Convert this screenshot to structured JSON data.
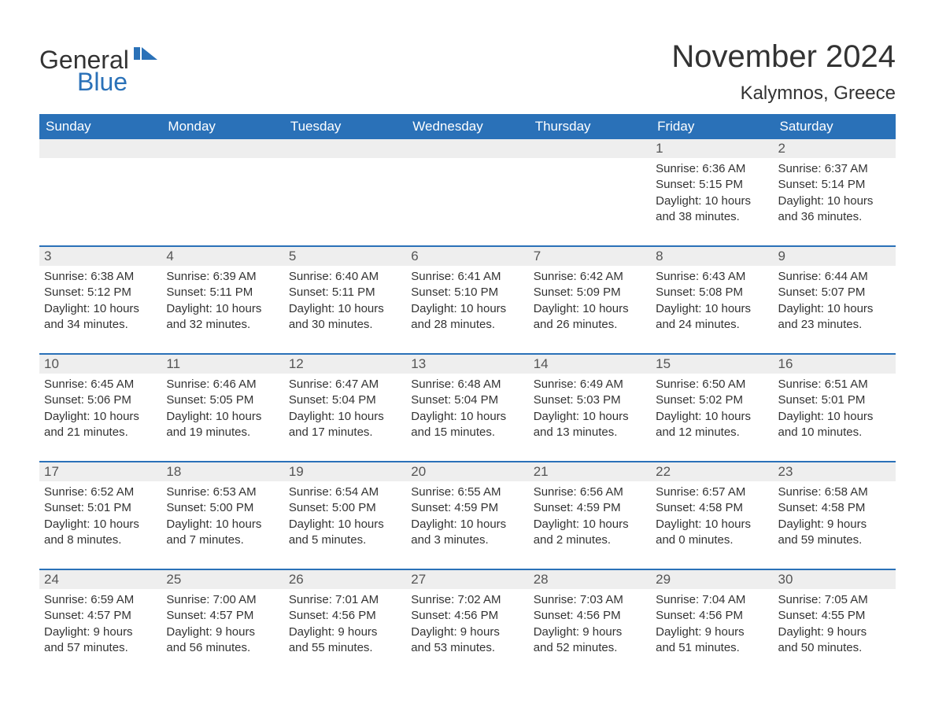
{
  "logo": {
    "text_general": "General",
    "text_blue": "Blue",
    "brand_color": "#2a71b8"
  },
  "title": "November 2024",
  "location": "Kalymnos, Greece",
  "colors": {
    "header_bg": "#2a71b8",
    "header_text": "#ffffff",
    "daynum_bg": "#eeeeee",
    "text": "#333333",
    "body_bg": "#ffffff",
    "row_border": "#2a71b8"
  },
  "typography": {
    "title_fontsize": 40,
    "location_fontsize": 24,
    "dayheader_fontsize": 17,
    "daynum_fontsize": 17,
    "body_fontsize": 15,
    "font_family": "Arial"
  },
  "layout": {
    "columns": 7,
    "rows": 5,
    "start_day_index": 5,
    "cell_min_height": 115
  },
  "day_headers": [
    "Sunday",
    "Monday",
    "Tuesday",
    "Wednesday",
    "Thursday",
    "Friday",
    "Saturday"
  ],
  "weeks": [
    [
      {
        "empty": true
      },
      {
        "empty": true
      },
      {
        "empty": true
      },
      {
        "empty": true
      },
      {
        "empty": true
      },
      {
        "day": "1",
        "sunrise": "Sunrise: 6:36 AM",
        "sunset": "Sunset: 5:15 PM",
        "daylight1": "Daylight: 10 hours",
        "daylight2": "and 38 minutes."
      },
      {
        "day": "2",
        "sunrise": "Sunrise: 6:37 AM",
        "sunset": "Sunset: 5:14 PM",
        "daylight1": "Daylight: 10 hours",
        "daylight2": "and 36 minutes."
      }
    ],
    [
      {
        "day": "3",
        "sunrise": "Sunrise: 6:38 AM",
        "sunset": "Sunset: 5:12 PM",
        "daylight1": "Daylight: 10 hours",
        "daylight2": "and 34 minutes."
      },
      {
        "day": "4",
        "sunrise": "Sunrise: 6:39 AM",
        "sunset": "Sunset: 5:11 PM",
        "daylight1": "Daylight: 10 hours",
        "daylight2": "and 32 minutes."
      },
      {
        "day": "5",
        "sunrise": "Sunrise: 6:40 AM",
        "sunset": "Sunset: 5:11 PM",
        "daylight1": "Daylight: 10 hours",
        "daylight2": "and 30 minutes."
      },
      {
        "day": "6",
        "sunrise": "Sunrise: 6:41 AM",
        "sunset": "Sunset: 5:10 PM",
        "daylight1": "Daylight: 10 hours",
        "daylight2": "and 28 minutes."
      },
      {
        "day": "7",
        "sunrise": "Sunrise: 6:42 AM",
        "sunset": "Sunset: 5:09 PM",
        "daylight1": "Daylight: 10 hours",
        "daylight2": "and 26 minutes."
      },
      {
        "day": "8",
        "sunrise": "Sunrise: 6:43 AM",
        "sunset": "Sunset: 5:08 PM",
        "daylight1": "Daylight: 10 hours",
        "daylight2": "and 24 minutes."
      },
      {
        "day": "9",
        "sunrise": "Sunrise: 6:44 AM",
        "sunset": "Sunset: 5:07 PM",
        "daylight1": "Daylight: 10 hours",
        "daylight2": "and 23 minutes."
      }
    ],
    [
      {
        "day": "10",
        "sunrise": "Sunrise: 6:45 AM",
        "sunset": "Sunset: 5:06 PM",
        "daylight1": "Daylight: 10 hours",
        "daylight2": "and 21 minutes."
      },
      {
        "day": "11",
        "sunrise": "Sunrise: 6:46 AM",
        "sunset": "Sunset: 5:05 PM",
        "daylight1": "Daylight: 10 hours",
        "daylight2": "and 19 minutes."
      },
      {
        "day": "12",
        "sunrise": "Sunrise: 6:47 AM",
        "sunset": "Sunset: 5:04 PM",
        "daylight1": "Daylight: 10 hours",
        "daylight2": "and 17 minutes."
      },
      {
        "day": "13",
        "sunrise": "Sunrise: 6:48 AM",
        "sunset": "Sunset: 5:04 PM",
        "daylight1": "Daylight: 10 hours",
        "daylight2": "and 15 minutes."
      },
      {
        "day": "14",
        "sunrise": "Sunrise: 6:49 AM",
        "sunset": "Sunset: 5:03 PM",
        "daylight1": "Daylight: 10 hours",
        "daylight2": "and 13 minutes."
      },
      {
        "day": "15",
        "sunrise": "Sunrise: 6:50 AM",
        "sunset": "Sunset: 5:02 PM",
        "daylight1": "Daylight: 10 hours",
        "daylight2": "and 12 minutes."
      },
      {
        "day": "16",
        "sunrise": "Sunrise: 6:51 AM",
        "sunset": "Sunset: 5:01 PM",
        "daylight1": "Daylight: 10 hours",
        "daylight2": "and 10 minutes."
      }
    ],
    [
      {
        "day": "17",
        "sunrise": "Sunrise: 6:52 AM",
        "sunset": "Sunset: 5:01 PM",
        "daylight1": "Daylight: 10 hours",
        "daylight2": "and 8 minutes."
      },
      {
        "day": "18",
        "sunrise": "Sunrise: 6:53 AM",
        "sunset": "Sunset: 5:00 PM",
        "daylight1": "Daylight: 10 hours",
        "daylight2": "and 7 minutes."
      },
      {
        "day": "19",
        "sunrise": "Sunrise: 6:54 AM",
        "sunset": "Sunset: 5:00 PM",
        "daylight1": "Daylight: 10 hours",
        "daylight2": "and 5 minutes."
      },
      {
        "day": "20",
        "sunrise": "Sunrise: 6:55 AM",
        "sunset": "Sunset: 4:59 PM",
        "daylight1": "Daylight: 10 hours",
        "daylight2": "and 3 minutes."
      },
      {
        "day": "21",
        "sunrise": "Sunrise: 6:56 AM",
        "sunset": "Sunset: 4:59 PM",
        "daylight1": "Daylight: 10 hours",
        "daylight2": "and 2 minutes."
      },
      {
        "day": "22",
        "sunrise": "Sunrise: 6:57 AM",
        "sunset": "Sunset: 4:58 PM",
        "daylight1": "Daylight: 10 hours",
        "daylight2": "and 0 minutes."
      },
      {
        "day": "23",
        "sunrise": "Sunrise: 6:58 AM",
        "sunset": "Sunset: 4:58 PM",
        "daylight1": "Daylight: 9 hours",
        "daylight2": "and 59 minutes."
      }
    ],
    [
      {
        "day": "24",
        "sunrise": "Sunrise: 6:59 AM",
        "sunset": "Sunset: 4:57 PM",
        "daylight1": "Daylight: 9 hours",
        "daylight2": "and 57 minutes."
      },
      {
        "day": "25",
        "sunrise": "Sunrise: 7:00 AM",
        "sunset": "Sunset: 4:57 PM",
        "daylight1": "Daylight: 9 hours",
        "daylight2": "and 56 minutes."
      },
      {
        "day": "26",
        "sunrise": "Sunrise: 7:01 AM",
        "sunset": "Sunset: 4:56 PM",
        "daylight1": "Daylight: 9 hours",
        "daylight2": "and 55 minutes."
      },
      {
        "day": "27",
        "sunrise": "Sunrise: 7:02 AM",
        "sunset": "Sunset: 4:56 PM",
        "daylight1": "Daylight: 9 hours",
        "daylight2": "and 53 minutes."
      },
      {
        "day": "28",
        "sunrise": "Sunrise: 7:03 AM",
        "sunset": "Sunset: 4:56 PM",
        "daylight1": "Daylight: 9 hours",
        "daylight2": "and 52 minutes."
      },
      {
        "day": "29",
        "sunrise": "Sunrise: 7:04 AM",
        "sunset": "Sunset: 4:56 PM",
        "daylight1": "Daylight: 9 hours",
        "daylight2": "and 51 minutes."
      },
      {
        "day": "30",
        "sunrise": "Sunrise: 7:05 AM",
        "sunset": "Sunset: 4:55 PM",
        "daylight1": "Daylight: 9 hours",
        "daylight2": "and 50 minutes."
      }
    ]
  ]
}
